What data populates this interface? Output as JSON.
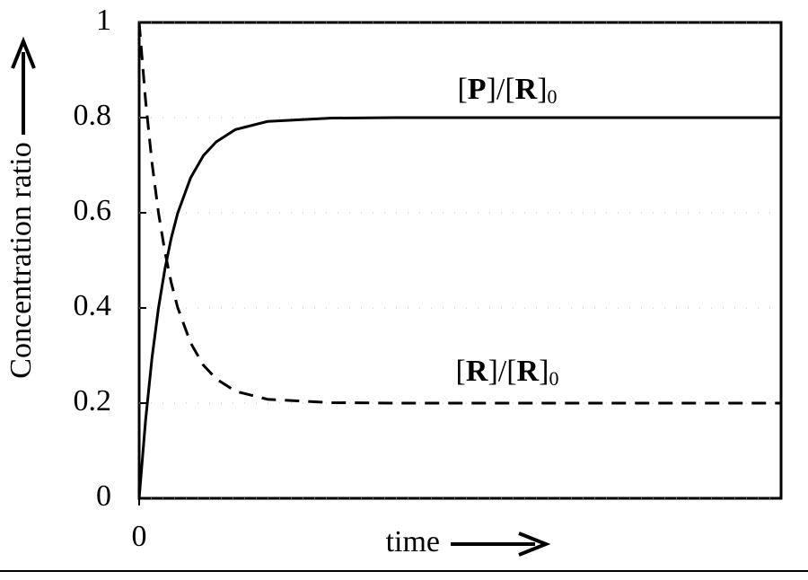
{
  "chart_data": {
    "type": "line",
    "xlabel": "time",
    "ylabel": "Concentration ratio",
    "x": [
      0,
      0.1,
      0.2,
      0.3,
      0.4,
      0.5,
      0.6,
      0.8,
      1.0,
      1.2,
      1.5,
      2.0,
      3,
      4,
      6,
      8,
      10
    ],
    "series": [
      {
        "name": "[P]/[R]0",
        "color": "#000000",
        "linestyle": "solid",
        "values": [
          0,
          0.164,
          0.295,
          0.399,
          0.481,
          0.547,
          0.599,
          0.673,
          0.72,
          0.749,
          0.775,
          0.792,
          0.799,
          0.8,
          0.8,
          0.8,
          0.8
        ]
      },
      {
        "name": "[R]/[R]0",
        "color": "#000000",
        "linestyle": "dashed",
        "values": [
          1,
          0.836,
          0.705,
          0.601,
          0.519,
          0.453,
          0.401,
          0.327,
          0.28,
          0.251,
          0.225,
          0.208,
          0.201,
          0.2,
          0.2,
          0.2,
          0.2
        ]
      }
    ],
    "xlim": [
      0,
      10
    ],
    "xticks": [
      0
    ],
    "ylim": [
      0,
      1
    ],
    "yticks": [
      0,
      0.2,
      0.4,
      0.6,
      0.8,
      1
    ],
    "grid": true
  }
}
